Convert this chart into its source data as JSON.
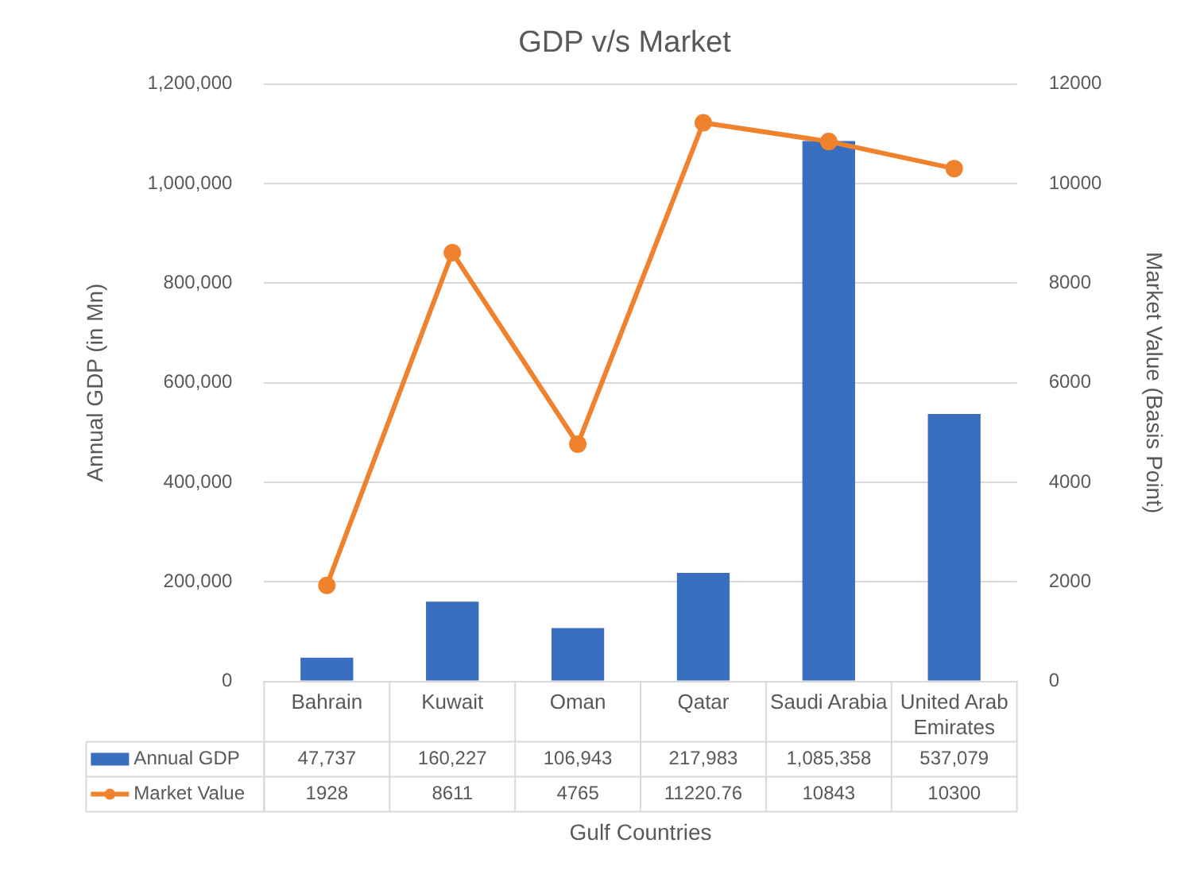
{
  "chart_data": {
    "type": "bar",
    "title": "GDP v/s Market",
    "xlabel": "Gulf Countries",
    "ylabel": "Annual GDP (in Mn)",
    "y2label": "Market Value (Basis Point)",
    "categories": [
      "Bahrain",
      "Kuwait",
      "Oman",
      "Qatar",
      "Saudi Arabia",
      "United Arab Emirates"
    ],
    "series": [
      {
        "name": "Annual GDP",
        "color": "#3a6ebf",
        "values": [
          47737,
          160227,
          106943,
          217983,
          1085358,
          537079
        ],
        "value_labels": [
          "47,737",
          "160,227",
          "106,943",
          "217,983",
          "1,085,358",
          "537,079"
        ]
      },
      {
        "name": "Market Value",
        "type": "line",
        "axis": "y2",
        "color": "#f0822d",
        "marker": "circle",
        "values": [
          1928,
          8611,
          4765,
          11220.76,
          10843,
          10300
        ],
        "value_labels": [
          "1928",
          "8611",
          "4765",
          "11220.76",
          "10843",
          "10300"
        ]
      }
    ],
    "ylim": [
      0,
      1200000
    ],
    "yticks": [
      {
        "value": 0,
        "label": "0"
      },
      {
        "value": 200000,
        "label": "200,000"
      },
      {
        "value": 400000,
        "label": "400,000"
      },
      {
        "value": 600000,
        "label": "600,000"
      },
      {
        "value": 800000,
        "label": "800,000"
      },
      {
        "value": 1000000,
        "label": "1,000,000"
      },
      {
        "value": 1200000,
        "label": "1,200,000"
      }
    ],
    "y2lim": [
      0,
      12000
    ],
    "y2ticks": [
      0,
      2000,
      4000,
      6000,
      8000,
      10000,
      12000
    ],
    "grid": "y",
    "legend": "bottom left"
  }
}
